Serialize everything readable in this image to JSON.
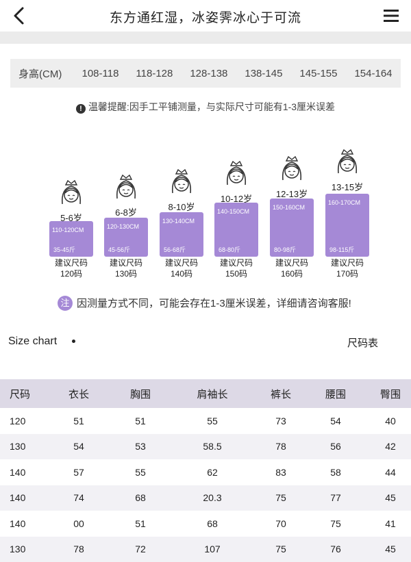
{
  "header": {
    "title": "东方通红湿，冰姿霁冰心于可流"
  },
  "height_row": {
    "label": "身高(CM)",
    "values": [
      "108-118",
      "118-128",
      "128-138",
      "138-145",
      "145-155",
      "154-164"
    ]
  },
  "notice": "温馨提醒:因手工平铺测量，与实际尺寸可能有1-3厘米误差",
  "kids": [
    {
      "age": "5-6岁",
      "height": "110-120CM",
      "weight": "35-45斤",
      "rec": "建议尺码",
      "size": "120码"
    },
    {
      "age": "6-8岁",
      "height": "120-130CM",
      "weight": "45-56斤",
      "rec": "建议尺码",
      "size": "130码"
    },
    {
      "age": "8-10岁",
      "height": "130-140CM",
      "weight": "56-68斤",
      "rec": "建议尺码",
      "size": "140码"
    },
    {
      "age": "10-12岁",
      "height": "140-150CM",
      "weight": "68-80斤",
      "rec": "建议尺码",
      "size": "150码"
    },
    {
      "age": "12-13岁",
      "height": "150-160CM",
      "weight": "80-98斤",
      "rec": "建议尺码",
      "size": "160码"
    },
    {
      "age": "13-15岁",
      "height": "160-170CM",
      "weight": "98-115斤",
      "rec": "建议尺码",
      "size": "170码"
    }
  ],
  "note2": {
    "badge": "注",
    "text": "因测量方式不同，可能会存在1-3厘米误差，详细请咨询客服!"
  },
  "size_chart": {
    "label": "Size chart",
    "label_cn": "尺码表"
  },
  "table": {
    "headers": [
      "尺码",
      "衣长",
      "胸围",
      "肩袖长",
      "裤长",
      "腰围",
      "臀围"
    ],
    "rows": [
      [
        "120",
        "51",
        "51",
        "55",
        "73",
        "54",
        "40"
      ],
      [
        "130",
        "54",
        "53",
        "58.5",
        "78",
        "56",
        "42"
      ],
      [
        "140",
        "57",
        "55",
        "62",
        "83",
        "58",
        "44"
      ],
      [
        "140",
        "74",
        "68",
        "20.3",
        "75",
        "77",
        "45"
      ],
      [
        "140",
        "00",
        "51",
        "68",
        "70",
        "75",
        "41"
      ],
      [
        "130",
        "78",
        "72",
        "107",
        "75",
        "76",
        "45"
      ]
    ]
  },
  "colors": {
    "accent_purple": "#a589d6",
    "table_header": "#ddd9e6",
    "height_row_bg": "#eeeeee"
  }
}
